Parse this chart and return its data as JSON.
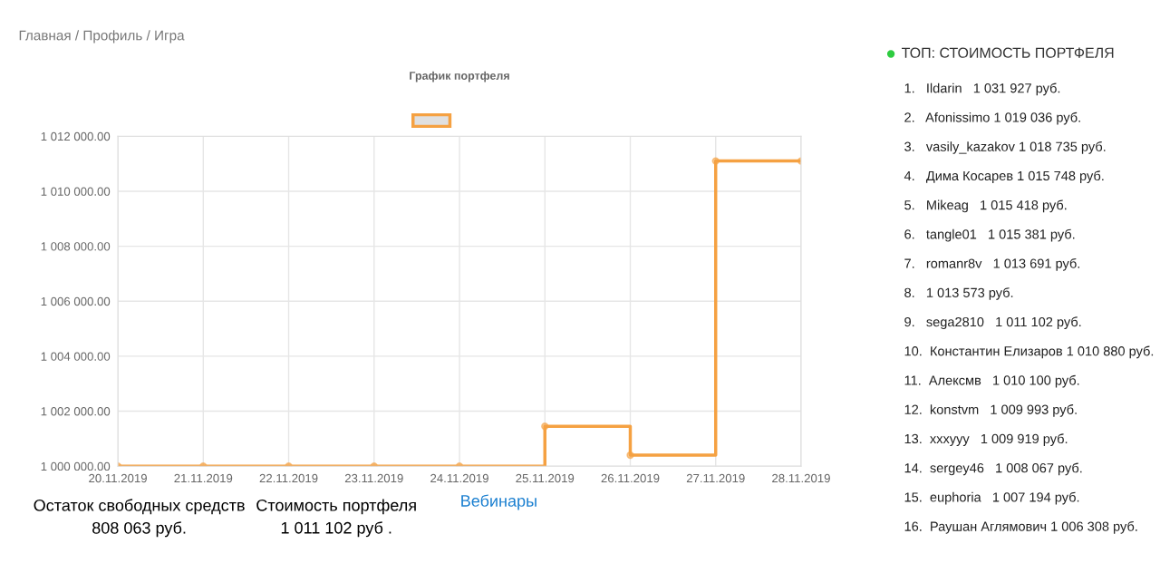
{
  "chart_data": [
    {
      "type": "step",
      "title": "График портфеля",
      "categories": [
        "20.11.2019",
        "21.11.2019",
        "22.11.2019",
        "23.11.2019",
        "24.11.2019",
        "25.11.2019",
        "26.11.2019",
        "27.11.2019",
        "28.11.2019"
      ],
      "series": [
        {
          "color": "#f5a142",
          "values": [
            1000000,
            1000000,
            1000000,
            1000000,
            1000000,
            1001450,
            1000400,
            1011100,
            1011100
          ]
        }
      ],
      "ylim": [
        1000000,
        1012000
      ],
      "yticks": [
        {
          "value": 1000000,
          "label": "1 000 000.00"
        },
        {
          "value": 1002000,
          "label": "1 002 000.00"
        },
        {
          "value": 1004000,
          "label": "1 004 000.00"
        },
        {
          "value": 1006000,
          "label": "1 006 000.00"
        },
        {
          "value": 1008000,
          "label": "1 008 000.00"
        },
        {
          "value": 1010000,
          "label": "1 010 000.00"
        },
        {
          "value": 1012000,
          "label": "1 012 000.00"
        }
      ],
      "grid": true,
      "marker": "circle",
      "line_style": "solid",
      "annotations": [
        "Главная / Профиль / Игра",
        "Остаток свободных средств\n808 063 руб.",
        "Стоимость портфеля\n1 011 102 руб .",
        "Вебинары"
      ]
    },
    {
      "type": "other",
      "title": "ТОП: СТОИМОСТЬ ПОРТФЕЛЯ",
      "annotations": [
        "1.   Ildarin   1 031 927 руб.",
        "2.   Afonissimo 1 019 036 руб.",
        "3.   vasily_kazakov 1 018 735 руб.",
        "4.   Дима Косарев 1 015 748 руб.",
        "5.   Mikeag   1 015 418 руб.",
        "6.   tangle01   1 015 381 руб.",
        "7.   romanr8v   1 013 691 руб.",
        "8.   1 013 573 руб.",
        "9.   sega2810   1 011 102 руб.",
        "10.  Константин Елизаров 1 010 880 руб.",
        "11.  Алексмв   1 010 100 руб.",
        "12.  konstvm   1 009 993 руб.",
        "13.  xxxyyy   1 009 919 руб.",
        "14.  sergey46   1 008 067 руб.",
        "15.  euphoria   1 007 194 руб.",
        "16.  Раушан Аглямович 1 006 308 руб."
      ]
    }
  ]
}
